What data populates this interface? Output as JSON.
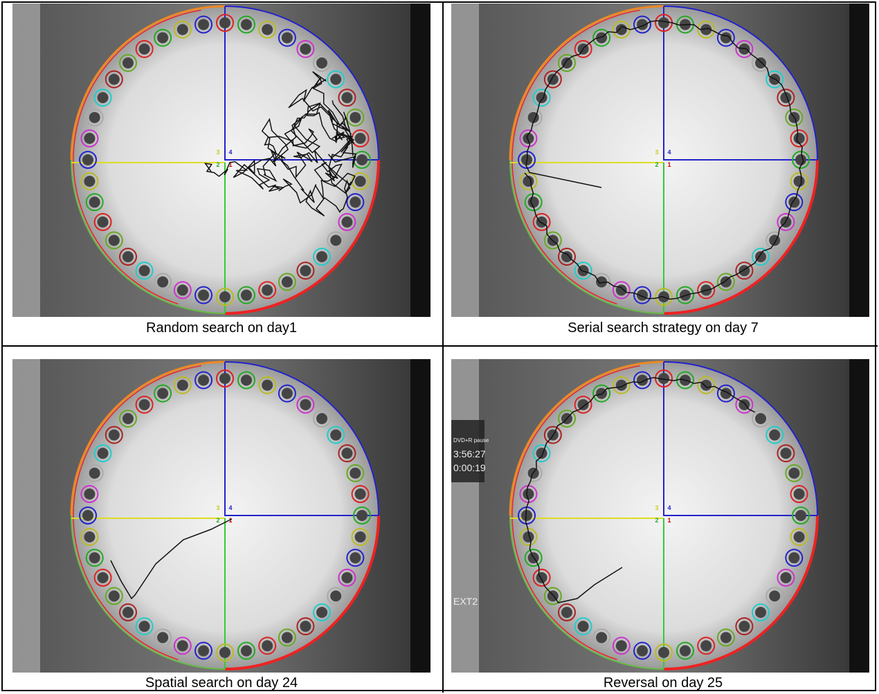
{
  "panels": [
    {
      "caption": "Random search on day1"
    },
    {
      "caption": "Serial search strategy on day 7"
    },
    {
      "caption": "Spatial search on day 24"
    },
    {
      "caption": "Reversal on day 25",
      "overlay": [
        "DVD+R pause",
        "3:56:27",
        "0:00:19",
        "EXT2"
      ]
    }
  ],
  "quadrant_labels": [
    "1",
    "2",
    "3",
    "4"
  ]
}
